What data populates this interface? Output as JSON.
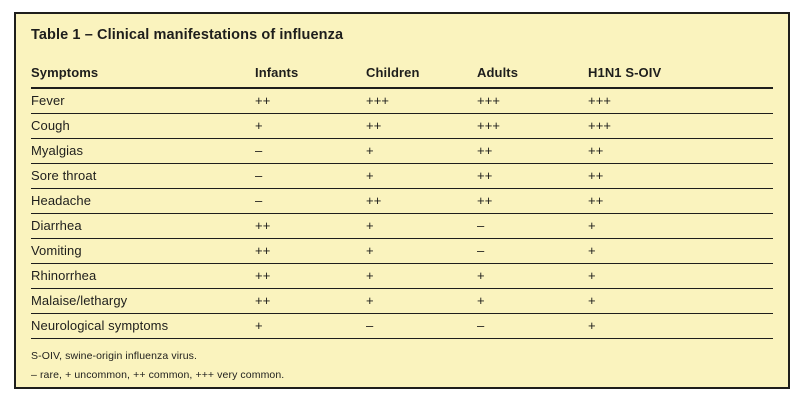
{
  "title": "Table 1 – Clinical manifestations of influenza",
  "table": {
    "columns": [
      "Symptoms",
      "Infants",
      "Children",
      "Adults",
      "H1N1 S-OIV"
    ],
    "rows": [
      [
        "Fever",
        "++",
        "+++",
        "+++",
        "+++"
      ],
      [
        "Cough",
        "+",
        "++",
        "+++",
        "+++"
      ],
      [
        "Myalgias",
        "–",
        "+",
        "++",
        "++"
      ],
      [
        "Sore throat",
        "–",
        "+",
        "++",
        "++"
      ],
      [
        "Headache",
        "–",
        "++",
        "++",
        "++"
      ],
      [
        "Diarrhea",
        "++",
        "+",
        "–",
        "+"
      ],
      [
        "Vomiting",
        "++",
        "+",
        "–",
        "+"
      ],
      [
        "Rhinorrhea",
        "++",
        "+",
        "+",
        "+"
      ],
      [
        "Malaise/lethargy",
        "++",
        "+",
        "+",
        "+"
      ],
      [
        "Neurological symptoms",
        "+",
        "–",
        "–",
        "+"
      ]
    ]
  },
  "footnotes": [
    "S-OIV, swine-origin influenza virus.",
    "– rare, + uncommon, ++ common, +++ very common."
  ],
  "colors": {
    "card_background": "#faf3be",
    "border": "#1e1e1c",
    "text": "#1e1e1c",
    "page_background": "#ffffff"
  }
}
